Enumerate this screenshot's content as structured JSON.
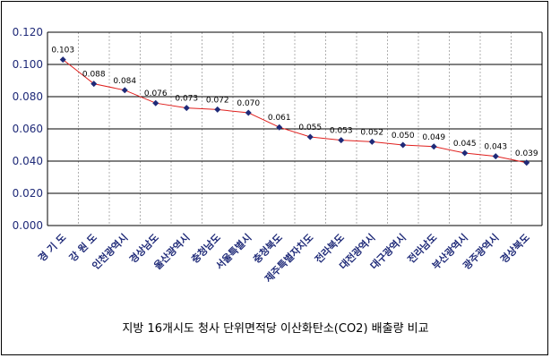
{
  "caption": "지방 16개시도 청사 단위면적당 이산화탄소(CO2) 배출량 비교",
  "colors": {
    "line": "#e0201e",
    "marker": "#1f2a78",
    "axis_text": "#1f2a78",
    "gridline": "#000000"
  },
  "chart_data": {
    "type": "line",
    "title": "",
    "xlabel": "",
    "ylabel": "",
    "categories": [
      "경 기 도",
      "강 원 도",
      "인천광역시",
      "경상남도",
      "울산광역시",
      "충청남도",
      "서울특별시",
      "충청북도",
      "제주특별자치도",
      "전라북도",
      "대전광역시",
      "대구광역시",
      "전라남도",
      "부산광역시",
      "광주광역시",
      "경상북도"
    ],
    "values": [
      0.103,
      0.088,
      0.084,
      0.076,
      0.073,
      0.072,
      0.07,
      0.061,
      0.055,
      0.053,
      0.052,
      0.05,
      0.049,
      0.045,
      0.043,
      0.039
    ],
    "data_labels": [
      "0.103",
      "0.088",
      "0.084",
      "0.076",
      "0.073",
      "0.072",
      "0.070",
      "0.061",
      "0.055",
      "0.053",
      "0.052",
      "0.050",
      "0.049",
      "0.045",
      "0.043",
      "0.039"
    ],
    "yticks": [
      "0.000",
      "0.020",
      "0.040",
      "0.060",
      "0.080",
      "0.100",
      "0.120"
    ],
    "ylim": [
      0,
      0.12
    ],
    "grid": true,
    "legend": "none"
  }
}
